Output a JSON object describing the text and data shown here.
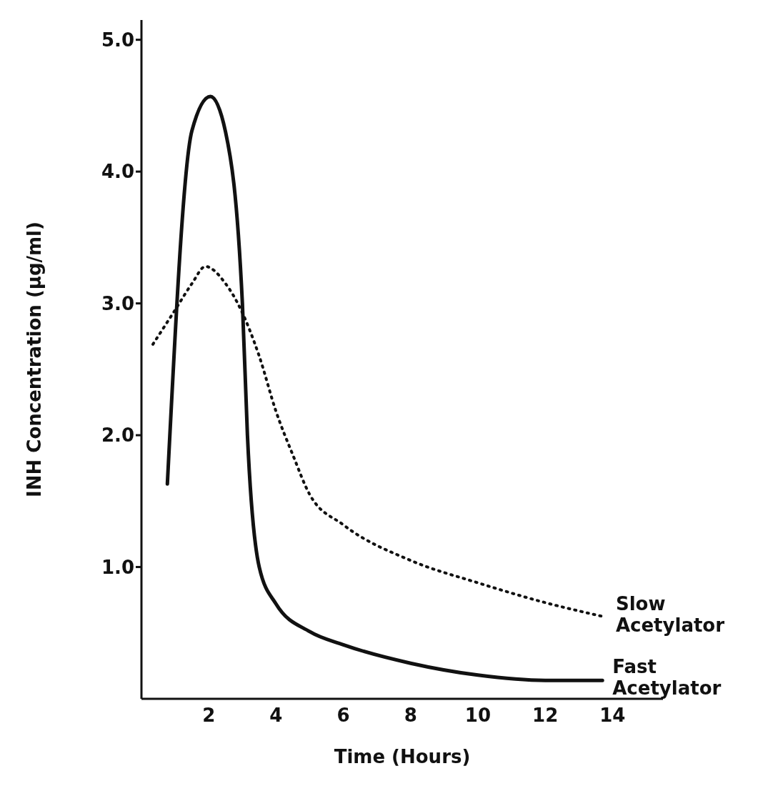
{
  "chart_data": {
    "type": "line",
    "xlabel": "Time (Hours)",
    "ylabel": "INH Concentration (µg/ml)",
    "xlim": [
      0,
      15.5
    ],
    "xticks": [
      2,
      4,
      6,
      8,
      10,
      12,
      14
    ],
    "ylim": [
      0,
      5.15
    ],
    "yticks": [
      {
        "value": 1,
        "label": "1.0"
      },
      {
        "value": 2,
        "label": "2.0"
      },
      {
        "value": 3,
        "label": "3.0"
      },
      {
        "value": 4,
        "label": "4.0"
      },
      {
        "value": 5,
        "label": "5.0"
      }
    ],
    "grid": false,
    "legend": false,
    "marker": "none",
    "series": [
      {
        "name": "Slow Acetylator",
        "color": "#111111",
        "line_style": "dotted",
        "x": [
          0.34,
          1,
          1.5,
          1.9,
          2.5,
          2.96,
          3.5,
          4,
          4.5,
          5,
          6,
          8,
          10,
          12,
          13.8
        ],
        "values": [
          2.69,
          2.95,
          3.15,
          3.28,
          3.15,
          2.95,
          2.6,
          2.18,
          1.85,
          1.55,
          1.32,
          1.05,
          0.88,
          0.73,
          0.62
        ]
      },
      {
        "name": "Fast Acetylator",
        "color": "#111111",
        "line_style": "solid",
        "x": [
          0.77,
          1.5,
          2.05,
          2.5,
          3,
          3.15,
          3.5,
          4,
          5,
          6,
          8,
          10,
          12,
          13.7
        ],
        "values": [
          1.63,
          4.31,
          4.57,
          4.3,
          3,
          2,
          1,
          0.72,
          0.51,
          0.41,
          0.27,
          0.18,
          0.14,
          0.14
        ]
      }
    ]
  }
}
